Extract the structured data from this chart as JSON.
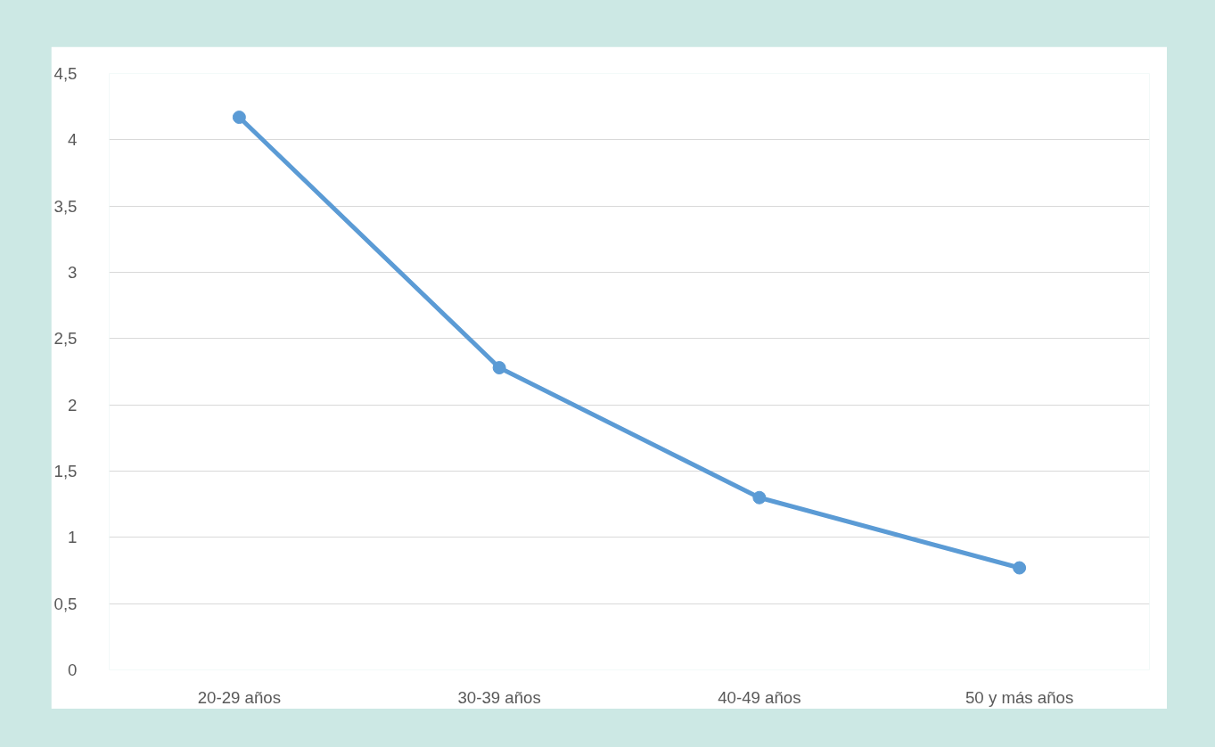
{
  "chart_data": {
    "type": "line",
    "categories": [
      "20-29 años",
      "30-39 años",
      "40-49 años",
      "50 y más años"
    ],
    "series": [
      {
        "color": "#5b9bd5",
        "values": [
          4.17,
          2.28,
          1.3,
          0.77
        ]
      }
    ],
    "ylim": [
      0,
      4.5
    ],
    "yticks": [
      0,
      {
        "value": 0.5,
        "label": "0,5"
      },
      1,
      {
        "value": 1.5,
        "label": "1,5"
      },
      2,
      {
        "value": 2.5,
        "label": "2,5"
      },
      3,
      {
        "value": 3.5,
        "label": "3,5"
      },
      4,
      {
        "value": 4.5,
        "label": "4,5"
      }
    ],
    "grid": "y",
    "marker": "circle",
    "line_style": "solid"
  }
}
